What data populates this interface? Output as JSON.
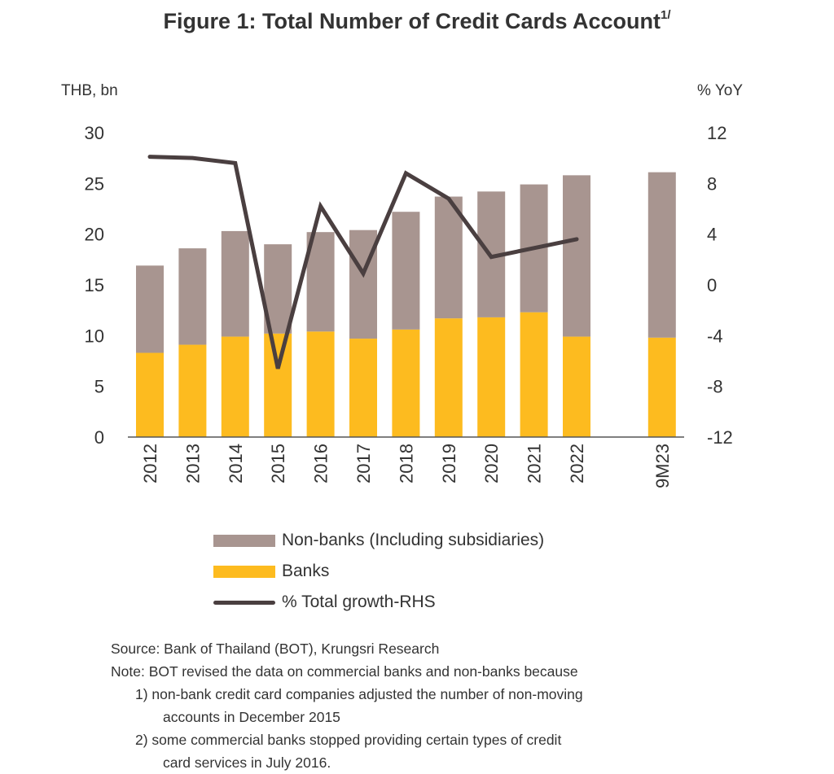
{
  "figure": {
    "title": "Figure 1: Total Number of Credit Cards Account",
    "title_superscript": "1/"
  },
  "chart_data": {
    "type": "bar",
    "stacked": true,
    "title": "Figure 1: Total Number of Credit Cards Account 1/",
    "xlabel": "",
    "ylabel": "THB, bn",
    "ylabel_right": "% YoY",
    "ylim": [
      0,
      30
    ],
    "ylim_right": [
      -12,
      12
    ],
    "yticks": [
      "0",
      "5",
      "10",
      "15",
      "20",
      "25",
      "30"
    ],
    "yticks_right": [
      "-12",
      "-8",
      "-4",
      "0",
      "4",
      "8",
      "12"
    ],
    "grid": false,
    "legend_position": "bottom",
    "categories": [
      "2012",
      "2013",
      "2014",
      "2015",
      "2016",
      "2017",
      "2018",
      "2019",
      "2020",
      "2021",
      "2022",
      "",
      "9M23"
    ],
    "series": [
      {
        "name": "Banks",
        "type": "bar",
        "axis": "left",
        "color": "#FDBB1F",
        "values": [
          8.3,
          9.1,
          9.9,
          10.2,
          10.4,
          9.7,
          10.6,
          11.7,
          11.8,
          12.3,
          9.9,
          null,
          9.8
        ]
      },
      {
        "name": "Non-banks (Including subsidiaries)",
        "type": "bar",
        "axis": "left",
        "color": "#A89590",
        "values": [
          8.6,
          9.5,
          10.4,
          8.8,
          9.8,
          10.7,
          11.6,
          12.0,
          12.4,
          12.6,
          15.9,
          null,
          16.3
        ]
      },
      {
        "name": "% Total growth-RHS",
        "type": "line",
        "axis": "right",
        "color": "#4A3F40",
        "values": [
          10.1,
          10.0,
          9.6,
          -6.6,
          6.2,
          0.9,
          8.8,
          6.8,
          2.2,
          2.9,
          3.6,
          null,
          null
        ]
      }
    ]
  },
  "legend": {
    "items": [
      {
        "label": "Non-banks (Including subsidiaries)",
        "color": "#A89590",
        "kind": "bar"
      },
      {
        "label": "Banks",
        "color": "#FDBB1F",
        "kind": "bar"
      },
      {
        "label": "% Total growth-RHS",
        "color": "#4A3F40",
        "kind": "line"
      }
    ]
  },
  "footer": {
    "source": "Source: Bank of Thailand (BOT), Krungsri Research",
    "note_intro": "Note: BOT revised the data on commercial banks and non-banks because",
    "note_1_line1": "1) non-bank credit card companies adjusted the number of non-moving",
    "note_1_line2": "accounts in December 2015",
    "note_2_line1": "2) some commercial banks stopped providing certain types of credit",
    "note_2_line2": "card services in July 2016."
  }
}
